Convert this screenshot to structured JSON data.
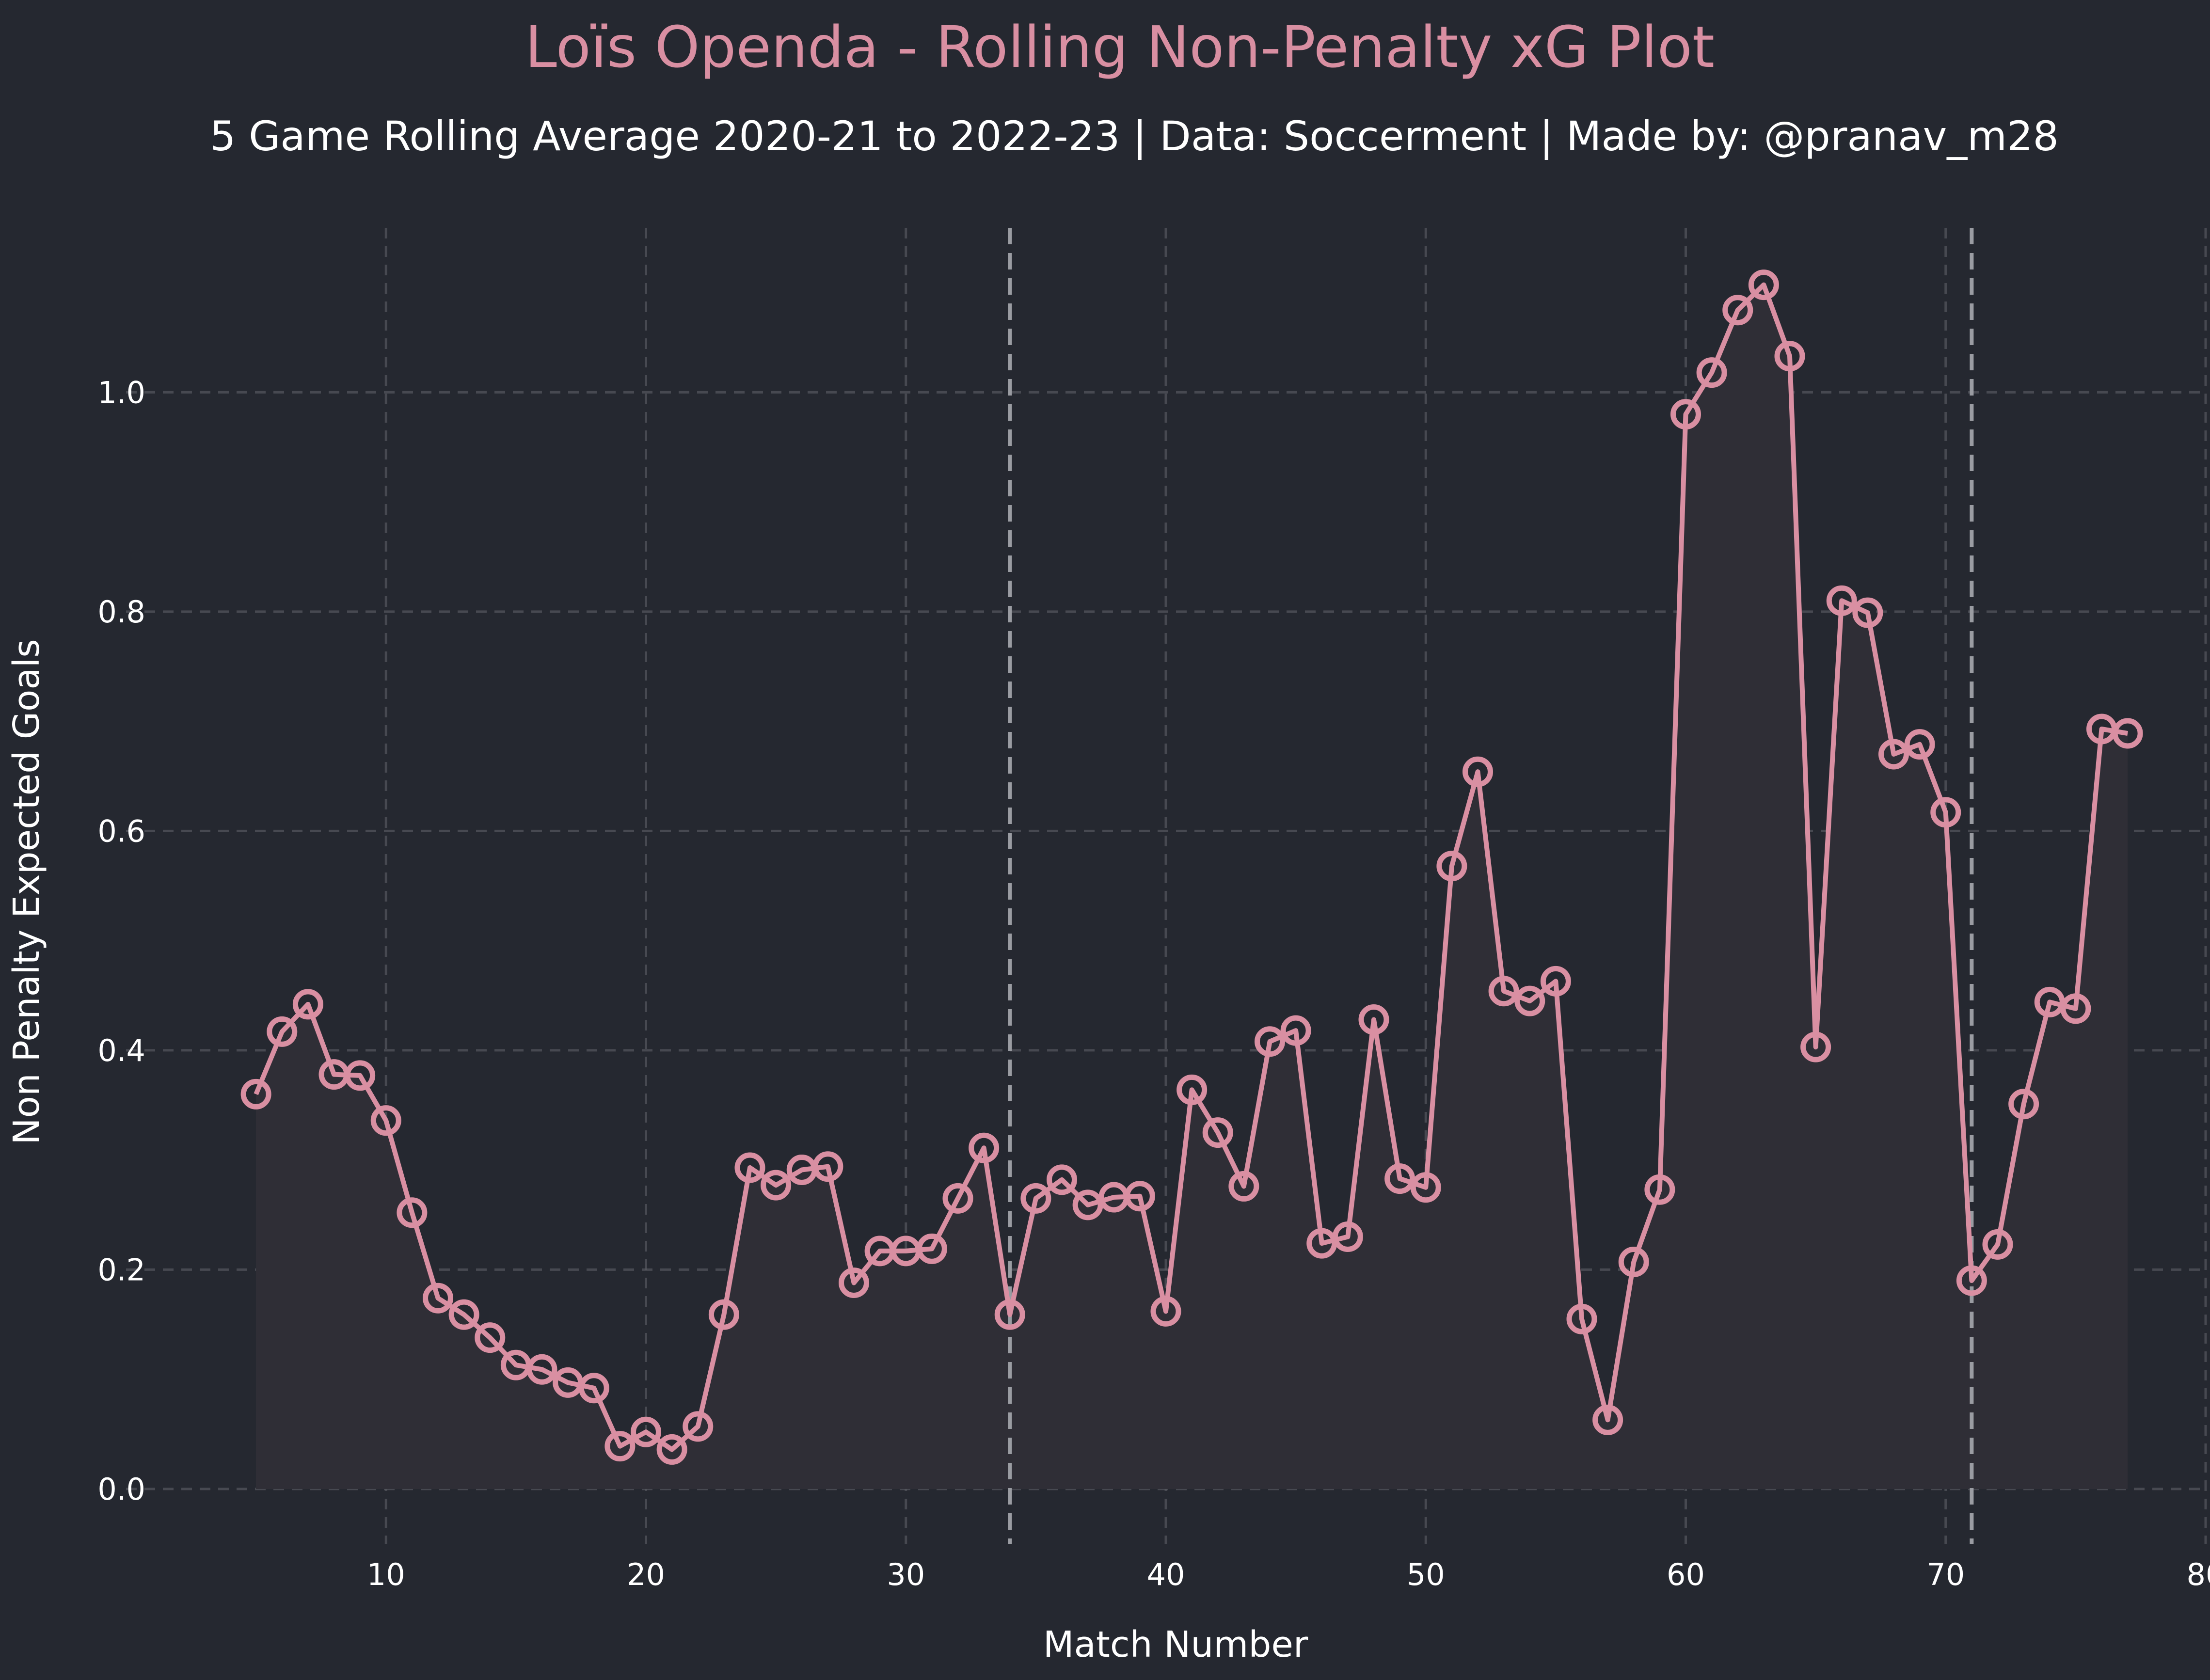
{
  "chart_data": {
    "type": "line",
    "title": "Loïs Openda - Rolling Non-Penalty xG Plot",
    "subtitle": "5 Game Rolling Average 2020-21 to 2022-23 | Data: Soccerment | Made by: @pranav_m28",
    "xlabel": "Match Number",
    "ylabel": "Non Penalty Expected Goals",
    "xlim": [
      0,
      80
    ],
    "ylim": [
      -0.05,
      1.15
    ],
    "x_ticks": [
      10,
      20,
      30,
      40,
      50,
      60,
      70,
      80
    ],
    "y_ticks": [
      0.0,
      0.2,
      0.4,
      0.6,
      0.8,
      1.0
    ],
    "x_tick_labels": [
      "10",
      "20",
      "30",
      "40",
      "50",
      "60",
      "70",
      "80"
    ],
    "y_tick_labels": [
      "0.0",
      "0.2",
      "0.4",
      "0.6",
      "0.8",
      "1.0"
    ],
    "grid": true,
    "season_dividers": [
      34,
      71
    ],
    "series": [
      {
        "x": [
          5,
          6,
          7,
          8,
          9,
          10,
          11,
          12,
          13,
          14,
          15,
          16,
          17,
          18,
          19,
          20,
          21,
          22,
          23,
          24,
          25,
          26,
          27,
          28,
          29,
          30,
          31,
          32,
          33,
          34,
          35,
          36,
          37,
          38,
          39,
          40,
          41,
          42,
          43,
          44,
          45,
          46,
          47,
          48,
          49,
          50,
          51,
          52,
          53,
          54,
          55,
          56,
          57,
          58,
          59,
          60,
          61,
          62,
          63,
          64,
          65,
          66,
          67,
          68,
          69,
          70,
          71,
          72,
          73,
          74,
          75,
          76,
          77
        ],
        "values": [
          0.36,
          0.417,
          0.442,
          0.378,
          0.377,
          0.336,
          0.252,
          0.174,
          0.159,
          0.138,
          0.113,
          0.109,
          0.097,
          0.092,
          0.039,
          0.052,
          0.036,
          0.057,
          0.159,
          0.293,
          0.277,
          0.291,
          0.294,
          0.188,
          0.217,
          0.217,
          0.219,
          0.265,
          0.311,
          0.159,
          0.265,
          0.282,
          0.259,
          0.266,
          0.267,
          0.162,
          0.364,
          0.325,
          0.276,
          0.408,
          0.418,
          0.224,
          0.23,
          0.428,
          0.283,
          0.275,
          0.568,
          0.654,
          0.454,
          0.445,
          0.463,
          0.155,
          0.063,
          0.207,
          0.273,
          0.98,
          1.018,
          1.075,
          1.098,
          1.033,
          0.403,
          0.81,
          0.799,
          0.67,
          0.679,
          0.617,
          0.19,
          0.223,
          0.351,
          0.444,
          0.438,
          0.693,
          0.689
        ]
      }
    ],
    "colors": {
      "background": "#252830",
      "line": "#d98fa2",
      "area": "#2f2e36",
      "grid": "#5a5c63",
      "divider": "#9a9ca2"
    }
  }
}
